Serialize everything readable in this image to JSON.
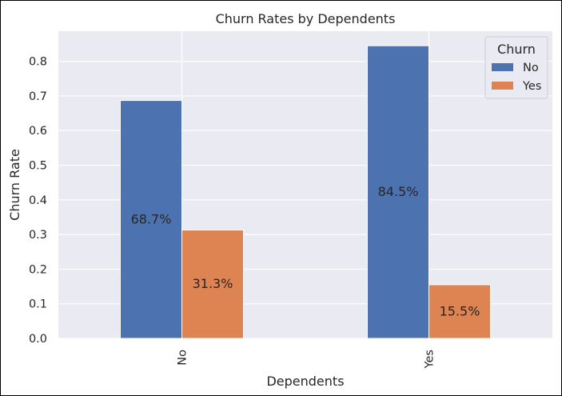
{
  "chart_data": {
    "type": "bar",
    "title": "Churn Rates by Dependents",
    "xlabel": "Dependents",
    "ylabel": "Churn Rate",
    "categories": [
      "No",
      "Yes"
    ],
    "series": [
      {
        "name": "No",
        "values": [
          0.687,
          0.845
        ],
        "labels": [
          "68.7%",
          "84.5%"
        ],
        "color": "#4c72b0"
      },
      {
        "name": "Yes",
        "values": [
          0.313,
          0.155
        ],
        "labels": [
          "31.3%",
          "15.5%"
        ],
        "color": "#dd8452"
      }
    ],
    "ylim": [
      0,
      0.887
    ],
    "yticks": [
      "0.0",
      "0.1",
      "0.2",
      "0.3",
      "0.4",
      "0.5",
      "0.6",
      "0.7",
      "0.8"
    ],
    "legend": {
      "title": "Churn",
      "position": "top-right"
    },
    "grid": true,
    "background": "#eaeaf2"
  }
}
